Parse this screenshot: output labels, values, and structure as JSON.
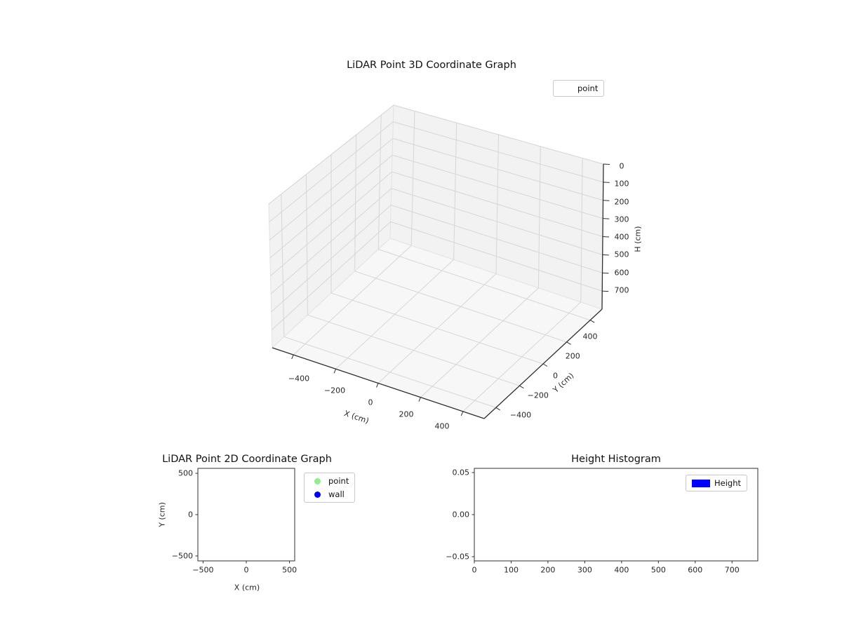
{
  "figure": {
    "background": "#ffffff"
  },
  "chart_data": [
    {
      "id": "lidar-3d",
      "type": "scatter3d",
      "title": "LiDAR Point 3D Coordinate Graph",
      "xlabel": "X (cm)",
      "ylabel": "Y (cm)",
      "zlabel": "H (cm)",
      "xlim": [
        -500,
        500
      ],
      "ylim": [
        -500,
        500
      ],
      "zlim": [
        0,
        800
      ],
      "zaxis_inverted": true,
      "xticks": [
        -400,
        -200,
        0,
        200,
        400
      ],
      "yticks": [
        -400,
        -200,
        0,
        200,
        400
      ],
      "zticks": [
        0,
        100,
        200,
        300,
        400,
        500,
        600,
        700
      ],
      "grid": true,
      "pane_color": "#f2f2f2",
      "grid_color": "#d6d6d6",
      "legend": {
        "position": "upper right",
        "entries": [
          {
            "label": "point",
            "marker": "circle",
            "marker_color": "#ffffff"
          }
        ]
      },
      "series": [
        {
          "name": "point",
          "points": []
        }
      ]
    },
    {
      "id": "lidar-2d",
      "type": "scatter",
      "title": "LiDAR Point 2D Coordinate Graph",
      "xlabel": "X (cm)",
      "ylabel": "Y (cm)",
      "xlim": [
        -560,
        560
      ],
      "ylim": [
        -560,
        560
      ],
      "xticks": [
        -500,
        0,
        500
      ],
      "yticks": [
        -500,
        0,
        500
      ],
      "grid": false,
      "legend": {
        "position": "outside right",
        "entries": [
          {
            "label": "point",
            "marker": "circle",
            "marker_color": "#90ee90"
          },
          {
            "label": "wall",
            "marker": "circle",
            "marker_color": "#0000ff"
          }
        ]
      },
      "series": [
        {
          "name": "point",
          "points": []
        },
        {
          "name": "wall",
          "points": []
        }
      ]
    },
    {
      "id": "height-histogram",
      "type": "bar",
      "title": "Height Histogram",
      "xlabel": "",
      "ylabel": "",
      "xlim": [
        0,
        770
      ],
      "ylim": [
        -0.055,
        0.055
      ],
      "xticks": [
        0,
        100,
        200,
        300,
        400,
        500,
        600,
        700
      ],
      "yticks": [
        -0.05,
        0,
        0.05
      ],
      "ytick_labels": [
        "−0.05",
        "0.00",
        "0.05"
      ],
      "grid": false,
      "legend": {
        "position": "upper right",
        "entries": [
          {
            "label": "Height",
            "marker": "rect",
            "marker_color": "#0000ff"
          }
        ]
      },
      "values": []
    }
  ]
}
